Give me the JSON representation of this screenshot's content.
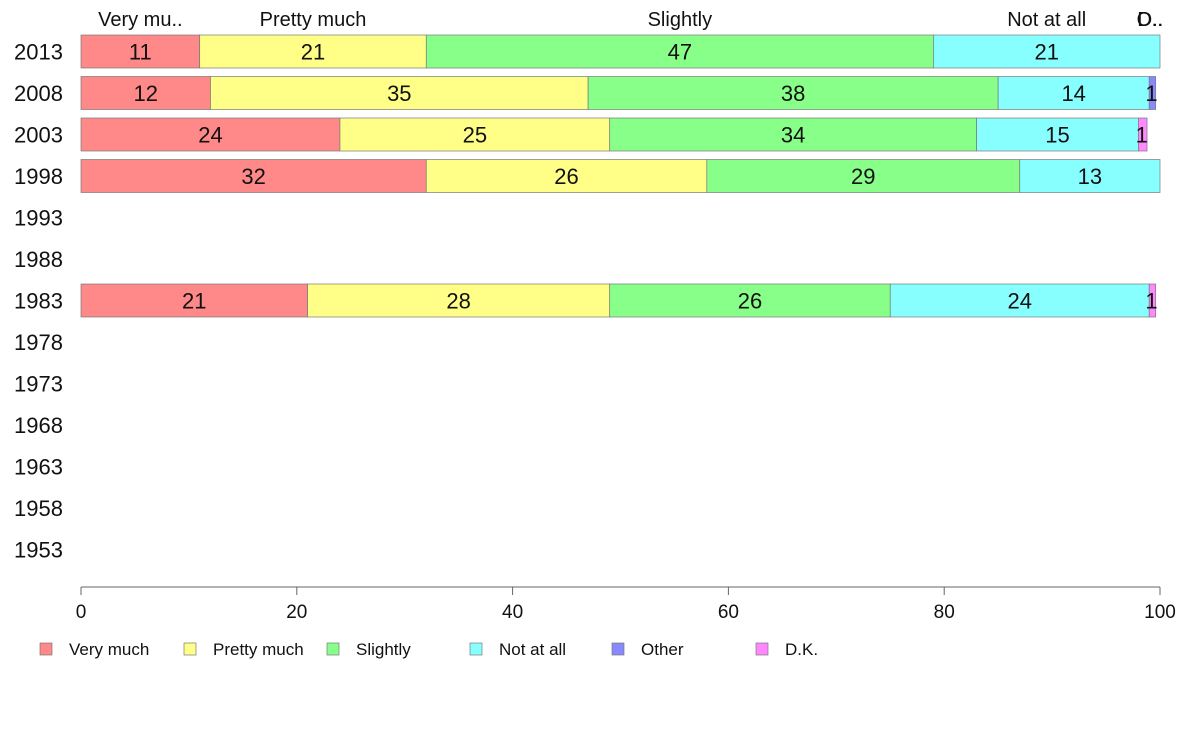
{
  "chart_data": {
    "type": "bar",
    "orientation": "horizontal",
    "stacked": true,
    "categories": [
      "2013",
      "2008",
      "2003",
      "1998",
      "1993",
      "1988",
      "1983",
      "1978",
      "1973",
      "1968",
      "1963",
      "1958",
      "1953"
    ],
    "series": [
      {
        "name": "Very much",
        "short_label": "Very mu..",
        "color": "#ff8888",
        "values": [
          11,
          12,
          24,
          32,
          null,
          null,
          21,
          null,
          null,
          null,
          null,
          null,
          null
        ]
      },
      {
        "name": "Pretty much",
        "short_label": "Pretty much",
        "color": "#ffff88",
        "values": [
          21,
          35,
          25,
          26,
          null,
          null,
          28,
          null,
          null,
          null,
          null,
          null,
          null
        ]
      },
      {
        "name": "Slightly",
        "short_label": "Slightly",
        "color": "#88ff88",
        "values": [
          47,
          38,
          34,
          29,
          null,
          null,
          26,
          null,
          null,
          null,
          null,
          null,
          null
        ]
      },
      {
        "name": "Not at all",
        "short_label": "Not at all",
        "color": "#88ffff",
        "values": [
          21,
          14,
          15,
          13,
          null,
          null,
          24,
          null,
          null,
          null,
          null,
          null,
          null
        ]
      },
      {
        "name": "Other",
        "short_label": "O..",
        "color": "#8888ff",
        "values": [
          0,
          0.6,
          0,
          0,
          null,
          null,
          0,
          null,
          null,
          null,
          null,
          null,
          null
        ]
      },
      {
        "name": "D.K.",
        "short_label": "D..",
        "color": "#ff88ff",
        "values": [
          0,
          0,
          0.8,
          0,
          null,
          null,
          0.6,
          null,
          null,
          null,
          null,
          null,
          null
        ]
      }
    ],
    "data_labels": [
      [
        "11",
        "21",
        "47",
        "21",
        "",
        ""
      ],
      [
        "12",
        "35",
        "38",
        "14",
        "1",
        ""
      ],
      [
        "24",
        "25",
        "34",
        "15",
        "",
        "1"
      ],
      [
        "32",
        "26",
        "29",
        "13",
        "",
        ""
      ],
      [
        "",
        "",
        "",
        "",
        "",
        ""
      ],
      [
        "",
        "",
        "",
        "",
        "",
        ""
      ],
      [
        "21",
        "28",
        "26",
        "24",
        "",
        "1"
      ],
      [
        "",
        "",
        "",
        "",
        "",
        ""
      ],
      [
        "",
        "",
        "",
        "",
        "",
        ""
      ],
      [
        "",
        "",
        "",
        "",
        "",
        ""
      ],
      [
        "",
        "",
        "",
        "",
        "",
        ""
      ],
      [
        "",
        "",
        "",
        "",
        "",
        ""
      ],
      [
        "",
        "",
        "",
        "",
        "",
        ""
      ]
    ],
    "xlim": [
      0,
      100
    ],
    "xticks": [
      0,
      20,
      40,
      60,
      80,
      100
    ],
    "xtick_labels": [
      "0",
      "20",
      "40",
      "60",
      "80",
      "100"
    ],
    "grid": false,
    "legend_position": "bottom-left"
  }
}
